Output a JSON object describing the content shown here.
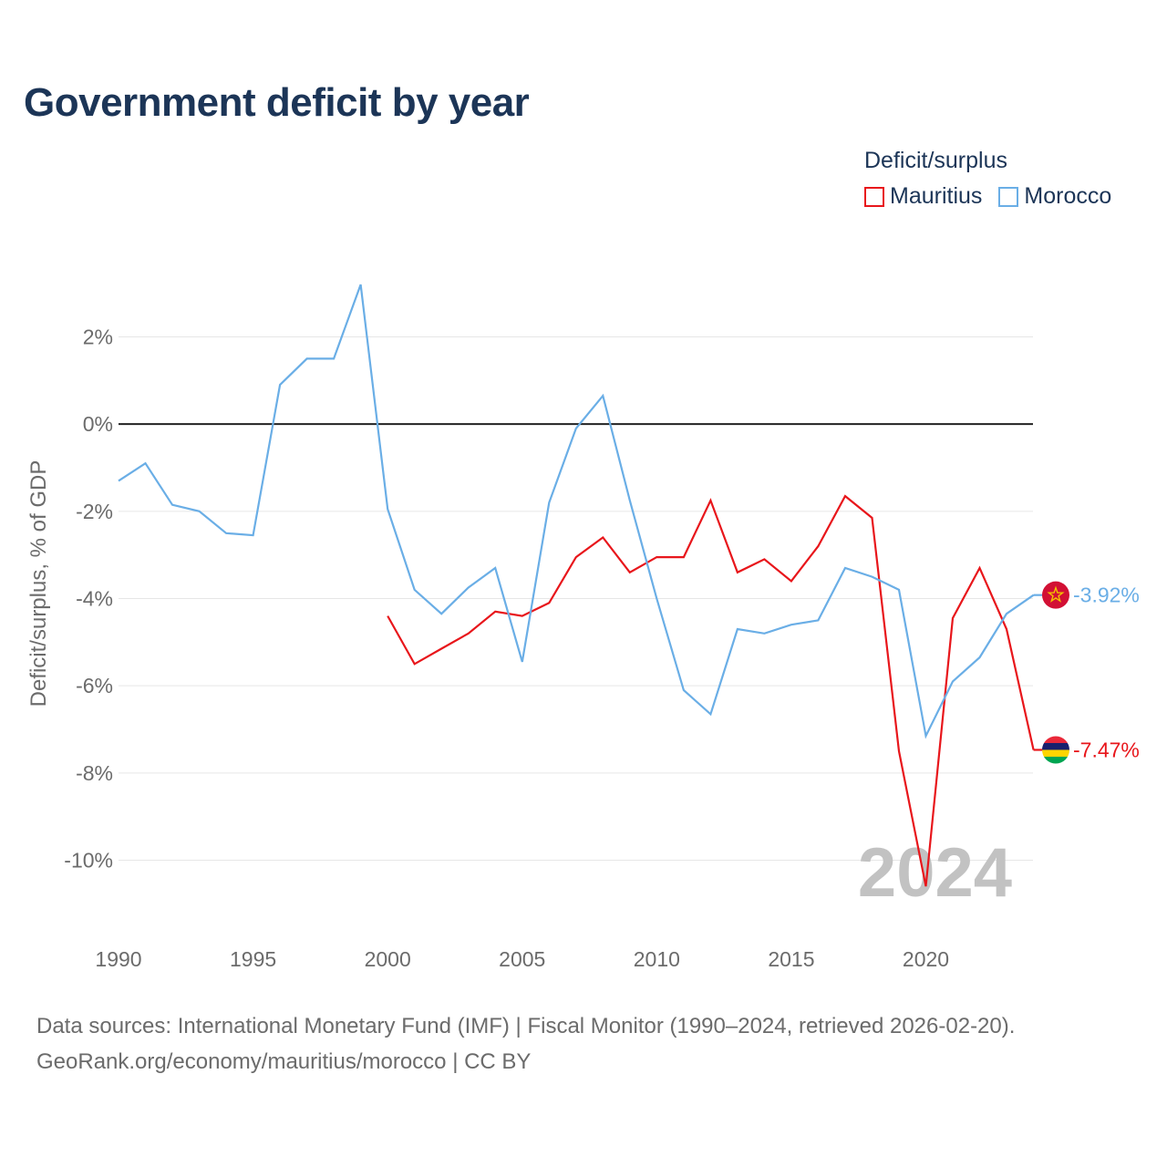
{
  "title": "Government deficit by year",
  "legend": {
    "title": "Deficit/surplus",
    "items": [
      {
        "name": "Mauritius",
        "color": "#e8161b"
      },
      {
        "name": "Morocco",
        "color": "#6aaee6"
      }
    ]
  },
  "chart_data": {
    "type": "line",
    "title": "Government deficit by year",
    "xlabel": "",
    "ylabel": "Deficit/surplus, % of GDP",
    "xlim": [
      1990,
      2024
    ],
    "ylim": [
      -11.5,
      3.5
    ],
    "x_ticks": [
      1990,
      1995,
      2000,
      2005,
      2010,
      2015,
      2020
    ],
    "x_tick_labels": [
      "1990",
      "1995",
      "2000",
      "2005",
      "2010",
      "2015",
      "2020"
    ],
    "y_ticks": [
      2,
      0,
      -2,
      -4,
      -6,
      -8,
      -10
    ],
    "y_tick_labels": [
      "2%",
      "0%",
      "-2%",
      "-4%",
      "-6%",
      "-8%",
      "-10%"
    ],
    "grid": true,
    "zero_line": true,
    "year_label": "2024",
    "series": [
      {
        "name": "Mauritius",
        "color": "#e8161b",
        "end_label": "-7.47%",
        "x": [
          2000,
          2001,
          2002,
          2003,
          2004,
          2005,
          2006,
          2007,
          2008,
          2009,
          2010,
          2011,
          2012,
          2013,
          2014,
          2015,
          2016,
          2017,
          2018,
          2019,
          2020,
          2021,
          2022,
          2023,
          2024
        ],
        "values": [
          -4.4,
          -5.5,
          -5.15,
          -4.8,
          -4.3,
          -4.4,
          -4.1,
          -3.05,
          -2.6,
          -3.4,
          -3.05,
          -3.05,
          -1.75,
          -3.4,
          -3.1,
          -3.6,
          -2.8,
          -1.65,
          -2.15,
          -7.5,
          -10.6,
          -4.45,
          -3.3,
          -4.7,
          -7.47
        ]
      },
      {
        "name": "Morocco",
        "color": "#6aaee6",
        "end_label": "-3.92%",
        "x": [
          1990,
          1991,
          1992,
          1993,
          1994,
          1995,
          1996,
          1997,
          1998,
          1999,
          2000,
          2001,
          2002,
          2003,
          2004,
          2005,
          2006,
          2007,
          2008,
          2009,
          2010,
          2011,
          2012,
          2013,
          2014,
          2015,
          2016,
          2017,
          2018,
          2019,
          2020,
          2021,
          2022,
          2023,
          2024
        ],
        "values": [
          -1.3,
          -0.9,
          -1.85,
          -2.0,
          -2.5,
          -2.55,
          0.9,
          1.5,
          1.5,
          3.2,
          -1.95,
          -3.8,
          -4.35,
          -3.75,
          -3.3,
          -5.45,
          -1.8,
          -0.1,
          0.65,
          -1.75,
          -4.0,
          -6.1,
          -6.65,
          -4.7,
          -4.8,
          -4.6,
          -4.5,
          -3.3,
          -3.5,
          -3.8,
          -7.15,
          -5.9,
          -5.35,
          -4.35,
          -3.92
        ]
      }
    ]
  },
  "flags": [
    {
      "country": "Morocco",
      "icon": "morocco-flag-icon"
    },
    {
      "country": "Mauritius",
      "icon": "mauritius-flag-icon"
    }
  ],
  "source": {
    "line1": "Data sources: International Monetary Fund (IMF) | Fiscal Monitor (1990–2024, retrieved 2026-02-20).",
    "line2": "GeoRank.org/economy/mauritius/morocco | CC BY"
  }
}
